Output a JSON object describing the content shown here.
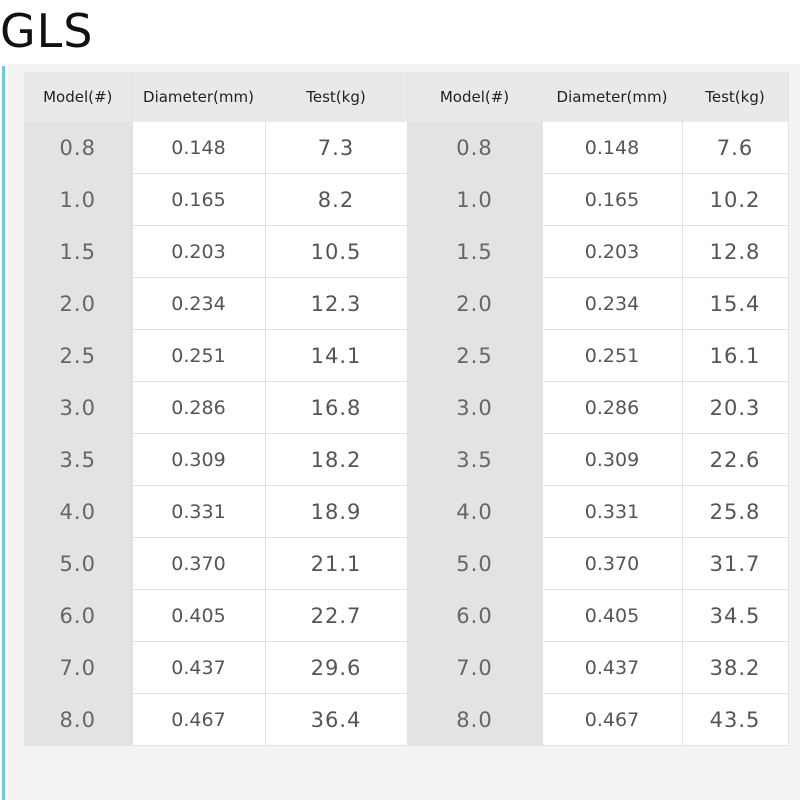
{
  "brand": "GLS",
  "table": {
    "headers": [
      "Model(#)",
      "Diameter(mm)",
      "Test(kg)",
      "Model(#)",
      "Diameter(mm)",
      "Test(kg)"
    ],
    "rows": [
      [
        "0.8",
        "0.148",
        "7.3",
        "0.8",
        "0.148",
        "7.6"
      ],
      [
        "1.0",
        "0.165",
        "8.2",
        "1.0",
        "0.165",
        "10.2"
      ],
      [
        "1.5",
        "0.203",
        "10.5",
        "1.5",
        "0.203",
        "12.8"
      ],
      [
        "2.0",
        "0.234",
        "12.3",
        "2.0",
        "0.234",
        "15.4"
      ],
      [
        "2.5",
        "0.251",
        "14.1",
        "2.5",
        "0.251",
        "16.1"
      ],
      [
        "3.0",
        "0.286",
        "16.8",
        "3.0",
        "0.286",
        "20.3"
      ],
      [
        "3.5",
        "0.309",
        "18.2",
        "3.5",
        "0.309",
        "22.6"
      ],
      [
        "4.0",
        "0.331",
        "18.9",
        "4.0",
        "0.331",
        "25.8"
      ],
      [
        "5.0",
        "0.370",
        "21.1",
        "5.0",
        "0.370",
        "31.7"
      ],
      [
        "6.0",
        "0.405",
        "22.7",
        "6.0",
        "0.405",
        "34.5"
      ],
      [
        "7.0",
        "0.437",
        "29.6",
        "7.0",
        "0.437",
        "38.2"
      ],
      [
        "8.0",
        "0.467",
        "36.4",
        "8.0",
        "0.467",
        "43.5"
      ]
    ]
  },
  "colors": {
    "accent": "#6fc9df",
    "header_bg": "#e9e9e9",
    "model_col_bg": "#e3e3e3"
  }
}
